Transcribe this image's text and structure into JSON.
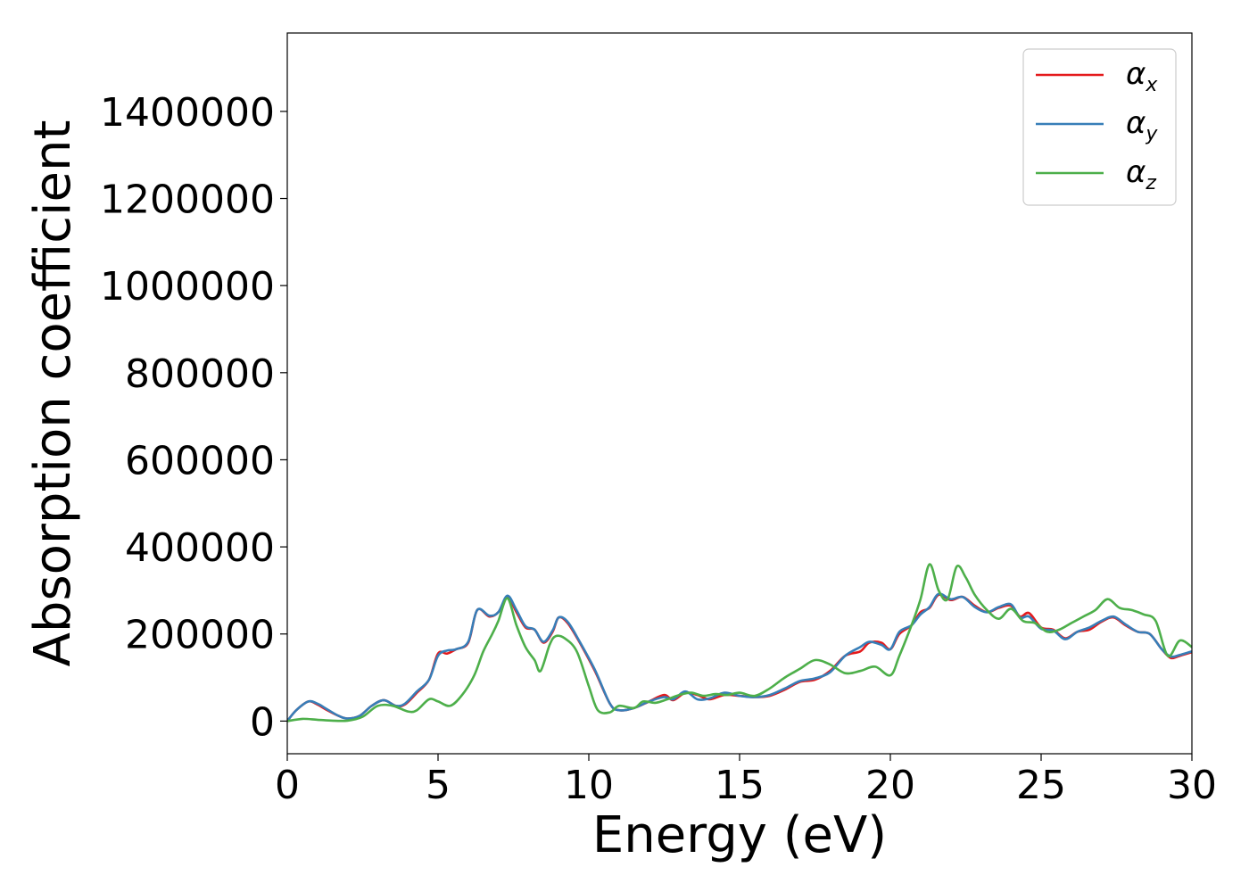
{
  "chart_data": {
    "type": "line",
    "title": "",
    "xlabel": "Energy (eV)",
    "ylabel": "Absorption coefficient",
    "xlim": [
      0,
      30
    ],
    "ylim": [
      -75000,
      1580000
    ],
    "x_ticks": [
      0,
      5,
      10,
      15,
      20,
      25,
      30
    ],
    "y_ticks": [
      0,
      200000,
      400000,
      600000,
      800000,
      1000000,
      1200000,
      1400000
    ],
    "x_tick_labels": [
      "0",
      "5",
      "10",
      "15",
      "20",
      "25",
      "30"
    ],
    "y_tick_labels": [
      "0",
      "200000",
      "400000",
      "600000",
      "800000",
      "1000000",
      "1200000",
      "1400000"
    ],
    "grid": false,
    "legend_position": "top-right",
    "series": [
      {
        "name": "α",
        "subscript": "x",
        "color": "#e41a1c",
        "points": [
          [
            0,
            0
          ],
          [
            0.3,
            25000
          ],
          [
            0.7,
            45000
          ],
          [
            1.0,
            38000
          ],
          [
            1.3,
            26000
          ],
          [
            1.7,
            12000
          ],
          [
            2.0,
            6000
          ],
          [
            2.4,
            12000
          ],
          [
            2.8,
            35000
          ],
          [
            3.2,
            48000
          ],
          [
            3.6,
            35000
          ],
          [
            3.9,
            38000
          ],
          [
            4.3,
            65000
          ],
          [
            4.7,
            95000
          ],
          [
            5.0,
            155000
          ],
          [
            5.3,
            155000
          ],
          [
            5.6,
            165000
          ],
          [
            6.0,
            180000
          ],
          [
            6.3,
            255000
          ],
          [
            6.7,
            240000
          ],
          [
            7.0,
            250000
          ],
          [
            7.3,
            285000
          ],
          [
            7.6,
            250000
          ],
          [
            7.9,
            215000
          ],
          [
            8.2,
            210000
          ],
          [
            8.5,
            180000
          ],
          [
            8.8,
            205000
          ],
          [
            9.0,
            238000
          ],
          [
            9.3,
            225000
          ],
          [
            9.7,
            180000
          ],
          [
            10.2,
            115000
          ],
          [
            10.7,
            40000
          ],
          [
            11.0,
            25000
          ],
          [
            11.5,
            30000
          ],
          [
            12.0,
            45000
          ],
          [
            12.5,
            60000
          ],
          [
            12.8,
            48000
          ],
          [
            13.2,
            65000
          ],
          [
            13.6,
            60000
          ],
          [
            14.0,
            50000
          ],
          [
            14.5,
            60000
          ],
          [
            15.0,
            58000
          ],
          [
            15.5,
            55000
          ],
          [
            16.0,
            58000
          ],
          [
            16.5,
            72000
          ],
          [
            17.0,
            90000
          ],
          [
            17.5,
            95000
          ],
          [
            18.0,
            115000
          ],
          [
            18.5,
            150000
          ],
          [
            19.0,
            160000
          ],
          [
            19.3,
            180000
          ],
          [
            19.7,
            180000
          ],
          [
            20.0,
            165000
          ],
          [
            20.3,
            200000
          ],
          [
            20.7,
            220000
          ],
          [
            21.0,
            250000
          ],
          [
            21.3,
            260000
          ],
          [
            21.6,
            290000
          ],
          [
            22.0,
            278000
          ],
          [
            22.4,
            285000
          ],
          [
            22.8,
            265000
          ],
          [
            23.2,
            250000
          ],
          [
            23.6,
            260000
          ],
          [
            24.0,
            265000
          ],
          [
            24.3,
            240000
          ],
          [
            24.6,
            248000
          ],
          [
            25.0,
            215000
          ],
          [
            25.4,
            210000
          ],
          [
            25.8,
            190000
          ],
          [
            26.2,
            205000
          ],
          [
            26.6,
            210000
          ],
          [
            27.0,
            228000
          ],
          [
            27.4,
            238000
          ],
          [
            27.8,
            220000
          ],
          [
            28.2,
            205000
          ],
          [
            28.6,
            200000
          ],
          [
            29.0,
            165000
          ],
          [
            29.3,
            145000
          ],
          [
            29.6,
            150000
          ],
          [
            30,
            158000
          ]
        ]
      },
      {
        "name": "α",
        "subscript": "y",
        "color": "#377eb8",
        "points": [
          [
            0,
            0
          ],
          [
            0.3,
            25000
          ],
          [
            0.7,
            45000
          ],
          [
            1.0,
            40000
          ],
          [
            1.3,
            28000
          ],
          [
            1.7,
            12000
          ],
          [
            2.0,
            6000
          ],
          [
            2.4,
            12000
          ],
          [
            2.8,
            35000
          ],
          [
            3.2,
            48000
          ],
          [
            3.6,
            35000
          ],
          [
            3.9,
            40000
          ],
          [
            4.3,
            68000
          ],
          [
            4.7,
            95000
          ],
          [
            5.0,
            150000
          ],
          [
            5.3,
            162000
          ],
          [
            5.6,
            165000
          ],
          [
            6.0,
            182000
          ],
          [
            6.3,
            255000
          ],
          [
            6.7,
            242000
          ],
          [
            7.0,
            250000
          ],
          [
            7.3,
            288000
          ],
          [
            7.6,
            255000
          ],
          [
            7.9,
            218000
          ],
          [
            8.2,
            210000
          ],
          [
            8.5,
            182000
          ],
          [
            8.8,
            208000
          ],
          [
            9.0,
            238000
          ],
          [
            9.3,
            228000
          ],
          [
            9.7,
            182000
          ],
          [
            10.2,
            118000
          ],
          [
            10.7,
            40000
          ],
          [
            11.0,
            25000
          ],
          [
            11.5,
            30000
          ],
          [
            12.0,
            45000
          ],
          [
            12.5,
            55000
          ],
          [
            12.8,
            50000
          ],
          [
            13.2,
            68000
          ],
          [
            13.6,
            50000
          ],
          [
            14.0,
            52000
          ],
          [
            14.5,
            65000
          ],
          [
            15.0,
            58000
          ],
          [
            15.5,
            55000
          ],
          [
            16.0,
            60000
          ],
          [
            16.5,
            75000
          ],
          [
            17.0,
            92000
          ],
          [
            17.5,
            98000
          ],
          [
            18.0,
            112000
          ],
          [
            18.5,
            150000
          ],
          [
            19.0,
            170000
          ],
          [
            19.3,
            182000
          ],
          [
            19.7,
            175000
          ],
          [
            20.0,
            165000
          ],
          [
            20.3,
            205000
          ],
          [
            20.7,
            220000
          ],
          [
            21.0,
            245000
          ],
          [
            21.3,
            262000
          ],
          [
            21.6,
            292000
          ],
          [
            22.0,
            280000
          ],
          [
            22.4,
            285000
          ],
          [
            22.8,
            262000
          ],
          [
            23.2,
            250000
          ],
          [
            23.6,
            262000
          ],
          [
            24.0,
            268000
          ],
          [
            24.3,
            238000
          ],
          [
            24.6,
            240000
          ],
          [
            25.0,
            212000
          ],
          [
            25.4,
            208000
          ],
          [
            25.8,
            188000
          ],
          [
            26.2,
            205000
          ],
          [
            26.6,
            215000
          ],
          [
            27.0,
            230000
          ],
          [
            27.4,
            240000
          ],
          [
            27.8,
            222000
          ],
          [
            28.2,
            205000
          ],
          [
            28.6,
            200000
          ],
          [
            29.0,
            165000
          ],
          [
            29.3,
            148000
          ],
          [
            29.6,
            152000
          ],
          [
            30,
            160000
          ]
        ]
      },
      {
        "name": "α",
        "subscript": "z",
        "color": "#4daf4a",
        "points": [
          [
            0,
            0
          ],
          [
            0.5,
            5000
          ],
          [
            1.0,
            3000
          ],
          [
            1.5,
            1000
          ],
          [
            2.0,
            1000
          ],
          [
            2.5,
            10000
          ],
          [
            3.0,
            35000
          ],
          [
            3.5,
            35000
          ],
          [
            4.0,
            22000
          ],
          [
            4.3,
            25000
          ],
          [
            4.7,
            50000
          ],
          [
            5.0,
            45000
          ],
          [
            5.4,
            35000
          ],
          [
            5.8,
            60000
          ],
          [
            6.2,
            105000
          ],
          [
            6.5,
            160000
          ],
          [
            6.8,
            200000
          ],
          [
            7.0,
            230000
          ],
          [
            7.3,
            282000
          ],
          [
            7.6,
            220000
          ],
          [
            7.9,
            170000
          ],
          [
            8.2,
            140000
          ],
          [
            8.4,
            115000
          ],
          [
            8.7,
            175000
          ],
          [
            8.9,
            195000
          ],
          [
            9.2,
            190000
          ],
          [
            9.6,
            160000
          ],
          [
            10.0,
            80000
          ],
          [
            10.3,
            25000
          ],
          [
            10.7,
            20000
          ],
          [
            11.0,
            35000
          ],
          [
            11.5,
            30000
          ],
          [
            11.8,
            45000
          ],
          [
            12.2,
            42000
          ],
          [
            12.6,
            50000
          ],
          [
            13.0,
            60000
          ],
          [
            13.4,
            65000
          ],
          [
            13.8,
            58000
          ],
          [
            14.2,
            62000
          ],
          [
            14.6,
            60000
          ],
          [
            15.0,
            65000
          ],
          [
            15.5,
            58000
          ],
          [
            16.0,
            75000
          ],
          [
            16.5,
            100000
          ],
          [
            17.0,
            120000
          ],
          [
            17.5,
            140000
          ],
          [
            18.0,
            130000
          ],
          [
            18.5,
            110000
          ],
          [
            19.0,
            115000
          ],
          [
            19.5,
            125000
          ],
          [
            20.0,
            105000
          ],
          [
            20.3,
            150000
          ],
          [
            20.7,
            220000
          ],
          [
            21.0,
            280000
          ],
          [
            21.3,
            360000
          ],
          [
            21.6,
            300000
          ],
          [
            21.9,
            280000
          ],
          [
            22.2,
            355000
          ],
          [
            22.5,
            330000
          ],
          [
            22.8,
            290000
          ],
          [
            23.2,
            255000
          ],
          [
            23.6,
            235000
          ],
          [
            24.0,
            258000
          ],
          [
            24.4,
            230000
          ],
          [
            24.8,
            225000
          ],
          [
            25.2,
            205000
          ],
          [
            25.6,
            210000
          ],
          [
            26.0,
            225000
          ],
          [
            26.4,
            240000
          ],
          [
            26.8,
            255000
          ],
          [
            27.2,
            280000
          ],
          [
            27.6,
            260000
          ],
          [
            28.0,
            255000
          ],
          [
            28.4,
            245000
          ],
          [
            28.8,
            230000
          ],
          [
            29.2,
            150000
          ],
          [
            29.6,
            185000
          ],
          [
            30,
            170000
          ]
        ]
      }
    ]
  }
}
